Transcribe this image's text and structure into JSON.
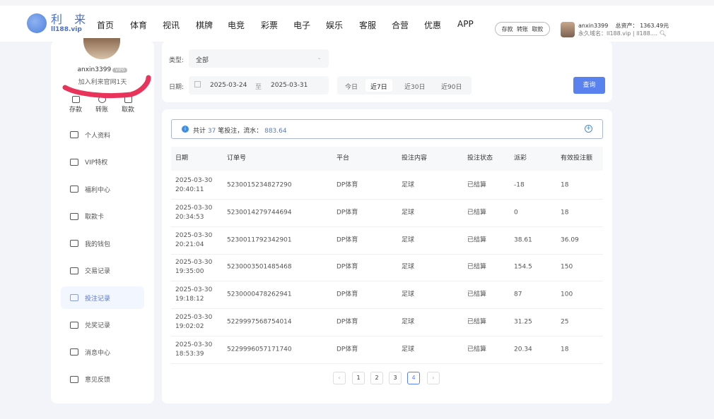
{
  "header": {
    "logo_text": "利 来",
    "logo_sub": "ll188.vip",
    "nav": [
      "首页",
      "体育",
      "视讯",
      "棋牌",
      "电竞",
      "彩票",
      "电子",
      "娱乐",
      "客服",
      "合营",
      "优惠",
      "APP"
    ],
    "quick": [
      "存款",
      "转账",
      "取款"
    ],
    "user": {
      "name": "anxin3399",
      "assets_label": "总资产：",
      "assets": "1363.49元",
      "domain": "永久域名：ll188.vip | ll188...."
    }
  },
  "sidebar": {
    "username": "anxin3399",
    "vip": "VIP0",
    "joined": "加入利来官网1天",
    "actions": [
      {
        "label": "存款",
        "icon": "wallet-icon"
      },
      {
        "label": "转账",
        "icon": "transfer-icon"
      },
      {
        "label": "取款",
        "icon": "withdraw-icon"
      }
    ],
    "items": [
      {
        "label": "个人资料",
        "icon": "id-card-icon"
      },
      {
        "label": "VIP特权",
        "icon": "crown-icon"
      },
      {
        "label": "福利中心",
        "icon": "gift-icon"
      },
      {
        "label": "取款卡",
        "icon": "card-icon"
      },
      {
        "label": "我的钱包",
        "icon": "wallet-icon"
      },
      {
        "label": "交易记录",
        "icon": "list-icon"
      },
      {
        "label": "投注记录",
        "icon": "document-icon",
        "active": true
      },
      {
        "label": "兑奖记录",
        "icon": "clipboard-icon"
      },
      {
        "label": "消息中心",
        "icon": "mail-icon"
      },
      {
        "label": "意见反馈",
        "icon": "feedback-icon"
      }
    ]
  },
  "filter": {
    "type_label": "类型:",
    "type_value": "全部",
    "date_label": "日期:",
    "date_from": "2025-03-24",
    "date_sep": "至",
    "date_to": "2025-03-31",
    "ranges": [
      "今日",
      "近7日",
      "近30日",
      "近90日"
    ],
    "active_range": "近7日",
    "query": "查询"
  },
  "summary": {
    "prefix": "共计",
    "count": "37",
    "mid": "笔投注，流水：",
    "amount": "883.64"
  },
  "table": {
    "columns": [
      "日期",
      "订单号",
      "平台",
      "投注内容",
      "投注状态",
      "派彩",
      "有效投注额"
    ],
    "rows": [
      [
        "2025-03-30",
        "20:40:11",
        "5230015234827290",
        "DP体育",
        "足球",
        "已结算",
        "-18",
        "18"
      ],
      [
        "2025-03-30",
        "20:34:53",
        "5230014279744694",
        "DP体育",
        "足球",
        "已结算",
        "0",
        "18"
      ],
      [
        "2025-03-30",
        "20:21:04",
        "5230011792342901",
        "DP体育",
        "足球",
        "已结算",
        "38.61",
        "36.09"
      ],
      [
        "2025-03-30",
        "19:35:00",
        "5230003501485468",
        "DP体育",
        "足球",
        "已结算",
        "154.5",
        "150"
      ],
      [
        "2025-03-30",
        "19:18:12",
        "5230000478262941",
        "DP体育",
        "足球",
        "已结算",
        "87",
        "100"
      ],
      [
        "2025-03-30",
        "19:02:02",
        "5229997568754014",
        "DP体育",
        "足球",
        "已结算",
        "31.25",
        "25"
      ],
      [
        "2025-03-30",
        "18:53:39",
        "5229996057171740",
        "DP体育",
        "足球",
        "已结算",
        "20.34",
        "18"
      ]
    ]
  },
  "pagination": {
    "prev": "‹",
    "pages": [
      "1",
      "2",
      "3",
      "4"
    ],
    "current": "4",
    "next": "›"
  },
  "colors": {
    "accent": "#5a82ef",
    "scribble": "#e8335a"
  }
}
